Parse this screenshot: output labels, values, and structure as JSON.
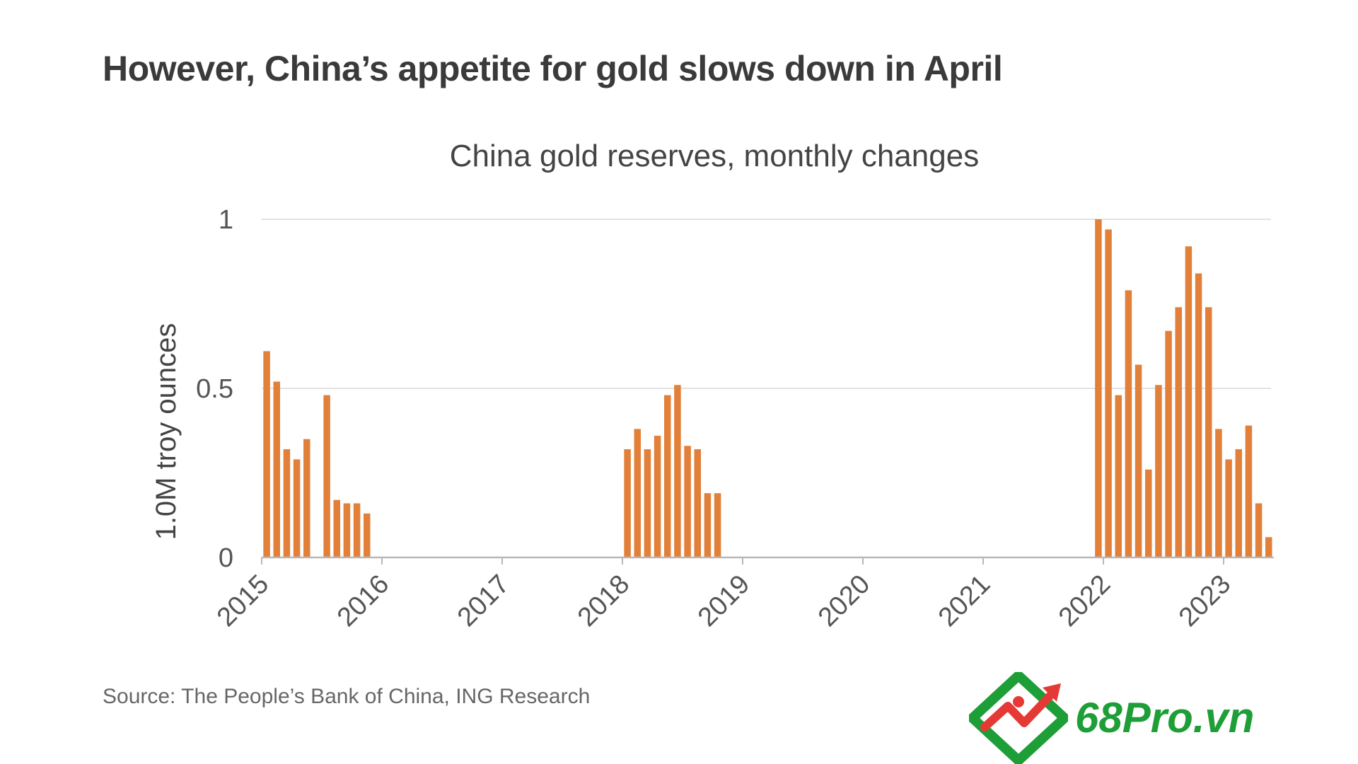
{
  "headline": "However, China’s appetite for gold slows down in April",
  "source": "Source: The People’s Bank of China, ING Research",
  "logo": {
    "text": "68Pro.vn",
    "icon": "chart-arrow-diamond-icon",
    "color": "#1e9e37",
    "accent": "#e53935"
  },
  "chart_data": {
    "type": "bar",
    "title": "China gold reserves, monthly changes",
    "ylabel": "1.0M troy ounces",
    "xlabel": "",
    "ylim": [
      0,
      1
    ],
    "yticks": [
      {
        "value": 0,
        "label": "0"
      },
      {
        "value": 0.5,
        "label": "0.5"
      },
      {
        "value": 1,
        "label": "1"
      }
    ],
    "xlim": [
      "2015-01",
      "2023-05"
    ],
    "xticks": [
      "2015",
      "2016",
      "2017",
      "2018",
      "2019",
      "2020",
      "2021",
      "2022",
      "2023"
    ],
    "grid": true,
    "bar_color": "#e2803a",
    "series": [
      {
        "values": [
          {
            "x": "2015-01",
            "y": 0.61
          },
          {
            "x": "2015-02",
            "y": 0.52
          },
          {
            "x": "2015-03",
            "y": 0.32
          },
          {
            "x": "2015-04",
            "y": 0.29
          },
          {
            "x": "2015-05",
            "y": 0.35
          },
          {
            "x": "2015-07",
            "y": 0.48
          },
          {
            "x": "2015-08",
            "y": 0.17
          },
          {
            "x": "2015-09",
            "y": 0.16
          },
          {
            "x": "2015-10",
            "y": 0.16
          },
          {
            "x": "2015-11",
            "y": 0.13
          },
          {
            "x": "2018-01",
            "y": 0.32
          },
          {
            "x": "2018-02",
            "y": 0.38
          },
          {
            "x": "2018-03",
            "y": 0.32
          },
          {
            "x": "2018-04",
            "y": 0.36
          },
          {
            "x": "2018-05",
            "y": 0.48
          },
          {
            "x": "2018-06",
            "y": 0.51
          },
          {
            "x": "2018-07",
            "y": 0.33
          },
          {
            "x": "2018-08",
            "y": 0.32
          },
          {
            "x": "2018-09",
            "y": 0.19
          },
          {
            "x": "2018-10",
            "y": 0.19
          },
          {
            "x": "2021-12",
            "y": 1.0
          },
          {
            "x": "2022-01",
            "y": 0.97
          },
          {
            "x": "2022-02",
            "y": 0.48
          },
          {
            "x": "2022-03",
            "y": 0.79
          },
          {
            "x": "2022-04",
            "y": 0.57
          },
          {
            "x": "2022-05",
            "y": 0.26
          },
          {
            "x": "2022-06",
            "y": 0.51
          },
          {
            "x": "2022-07",
            "y": 0.67
          },
          {
            "x": "2022-08",
            "y": 0.74
          },
          {
            "x": "2022-09",
            "y": 0.92
          },
          {
            "x": "2022-10",
            "y": 0.84
          },
          {
            "x": "2022-11",
            "y": 0.74
          },
          {
            "x": "2022-12",
            "y": 0.38
          },
          {
            "x": "2023-01",
            "y": 0.29
          },
          {
            "x": "2023-02",
            "y": 0.32
          },
          {
            "x": "2023-03",
            "y": 0.39
          },
          {
            "x": "2023-04",
            "y": 0.16
          },
          {
            "x": "2023-05",
            "y": 0.06
          }
        ]
      }
    ]
  }
}
